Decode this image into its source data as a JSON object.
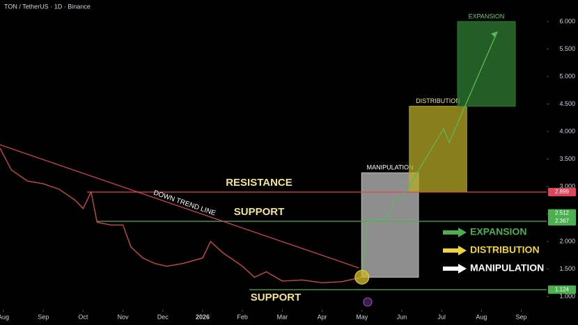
{
  "chart_data": {
    "type": "line",
    "title": "TON / TetherUS · 1D · Binance",
    "xlim": [
      -0.0874,
      13.637
    ],
    "ylim": [
      0.76,
      6.392
    ],
    "xticks": [
      {
        "value": 0,
        "label": "Aug"
      },
      {
        "value": 1,
        "label": "Sep"
      },
      {
        "value": 2,
        "label": "Oct"
      },
      {
        "value": 3,
        "label": "Nov"
      },
      {
        "value": 4,
        "label": "Dec"
      },
      {
        "value": 5,
        "label": "2026"
      },
      {
        "value": 6,
        "label": "Feb"
      },
      {
        "value": 7,
        "label": "Mar"
      },
      {
        "value": 8,
        "label": "Apr"
      },
      {
        "value": 9,
        "label": "May"
      },
      {
        "value": 10,
        "label": "Jun"
      },
      {
        "value": 11,
        "label": "Jul"
      },
      {
        "value": 12,
        "label": "Aug"
      },
      {
        "value": 13,
        "label": "Sep"
      }
    ],
    "yticks": [
      {
        "value": 1,
        "label": "1.000"
      },
      {
        "value": 1.5,
        "label": "1.500"
      },
      {
        "value": 2,
        "label": "2.000"
      },
      {
        "value": 2.5,
        "label": "2.500"
      },
      {
        "value": 3,
        "label": "3.000"
      },
      {
        "value": 3.5,
        "label": "3.500"
      },
      {
        "value": 4,
        "label": "4.000"
      },
      {
        "value": 4.5,
        "label": "4.500"
      },
      {
        "value": 5,
        "label": "5.000"
      },
      {
        "value": 5.5,
        "label": "5.500"
      },
      {
        "value": 6,
        "label": "6.000"
      }
    ],
    "series": [
      {
        "color": "#c94a48",
        "x": [
          -0.09,
          0.2,
          0.6,
          1.0,
          1.4,
          1.8,
          2.0,
          2.2,
          2.35,
          2.7,
          3.0,
          3.2,
          3.5,
          3.8,
          4.1,
          4.5,
          5.0,
          5.2,
          5.5,
          6.0,
          6.3,
          6.6,
          7.0,
          7.5,
          8.0,
          8.5,
          9.0
        ],
        "values": [
          3.7,
          3.3,
          3.1,
          3.05,
          2.95,
          2.75,
          2.6,
          2.9,
          2.35,
          2.3,
          2.3,
          1.9,
          1.7,
          1.6,
          1.55,
          1.6,
          1.7,
          2.0,
          1.8,
          1.55,
          1.35,
          1.45,
          1.28,
          1.3,
          1.25,
          1.27,
          1.35
        ]
      },
      {
        "color": "#5cb85c",
        "x": [
          9.0,
          9.14,
          9.62,
          9.79,
          10.05,
          11.05,
          11.19,
          12.4
        ],
        "values": [
          1.35,
          2.37,
          2.41,
          2.72,
          2.85,
          4.05,
          3.8,
          5.82
        ]
      }
    ],
    "trend_line": {
      "label": "DOWN TREND LINE",
      "color": "#e0455a",
      "x": [
        -0.09,
        8.92
      ],
      "values": [
        3.76,
        1.52
      ]
    },
    "levels": [
      {
        "label": "RESISTANCE",
        "value": 2.899,
        "from": 2.1,
        "color": "#e0455a"
      },
      {
        "label": "SUPPORT",
        "value": 2.367,
        "from": 2.35,
        "color": "#4caf50"
      },
      {
        "label": "SUPPORT",
        "value": 1.124,
        "from": 6.17,
        "color": "#4caf50"
      }
    ],
    "price_labels": [
      {
        "value": 2.899,
        "label": "2.899",
        "color": "#e0455a"
      },
      {
        "value": 2.512,
        "label": "2.512",
        "color": "#4caf50"
      },
      {
        "value": 2.367,
        "label": "2.367",
        "color": "#4caf50"
      },
      {
        "value": 1.124,
        "label": "1.124",
        "color": "#4caf50"
      }
    ],
    "zones": [
      {
        "label": "MANIPULATION",
        "x": [
          8.99,
          10.42
        ],
        "y": [
          1.35,
          3.25
        ],
        "color": "#bdbdbd",
        "text": "#ffffff"
      },
      {
        "label": "DISTRIBUTION",
        "x": [
          10.19,
          11.63
        ],
        "y": [
          2.9,
          4.46
        ],
        "color": "#b5a824",
        "text": "#f3e58a"
      },
      {
        "label": "EXPANSION",
        "x": [
          11.4,
          12.85
        ],
        "y": [
          4.46,
          6.0
        ],
        "color": "#2e7d32",
        "text": "#6ccf6c"
      }
    ],
    "legend": [
      {
        "label": "EXPANSION",
        "color": "#4caf50"
      },
      {
        "label": "DISTRIBUTION",
        "color": "#f0d43a"
      },
      {
        "label": "MANIPULATION",
        "color": "#ffffff"
      }
    ]
  }
}
